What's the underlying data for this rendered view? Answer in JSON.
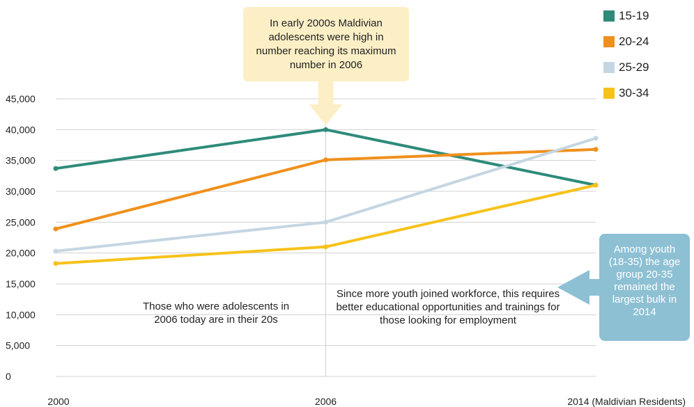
{
  "chart_data": {
    "type": "line",
    "categories": [
      "2000",
      "2006",
      "2014 (Maldivian Residents)"
    ],
    "series": [
      {
        "name": "15-19",
        "values": [
          33700,
          40000,
          31000
        ],
        "color": "#2e8b7a"
      },
      {
        "name": "20-24",
        "values": [
          23900,
          35100,
          36800
        ],
        "color": "#f0901c"
      },
      {
        "name": "25-29",
        "values": [
          20300,
          25000,
          38600
        ],
        "color": "#c5d6e2"
      },
      {
        "name": "30-34",
        "values": [
          18300,
          21000,
          31000
        ],
        "color": "#f6c21b"
      }
    ],
    "ylim": [
      0,
      45000
    ],
    "yticks": [
      "0",
      "5,000",
      "10,000",
      "15,000",
      "20,000",
      "25,000",
      "30,000",
      "35,000",
      "40,000",
      "45,000"
    ],
    "grid": "horizontal",
    "legend_position": "top-right",
    "annotations": {
      "top_callout": "In early 2000s Maldivian adolescents were high in number reaching its maximum number in 2006",
      "left_note": "Those who were adolescents in 2006 today are in their 20s",
      "middle_note": "Since more youth joined workforce, this requires better educational opportunities and trainings for those looking for employment",
      "right_callout": "Among youth (18-35) the age group 20-35 remained the largest bulk in 2014"
    },
    "colors": {
      "callout_top_bg": "#fcefc6",
      "callout_right_bg": "#8ec0d4",
      "grid": "#d0d0d0"
    }
  }
}
